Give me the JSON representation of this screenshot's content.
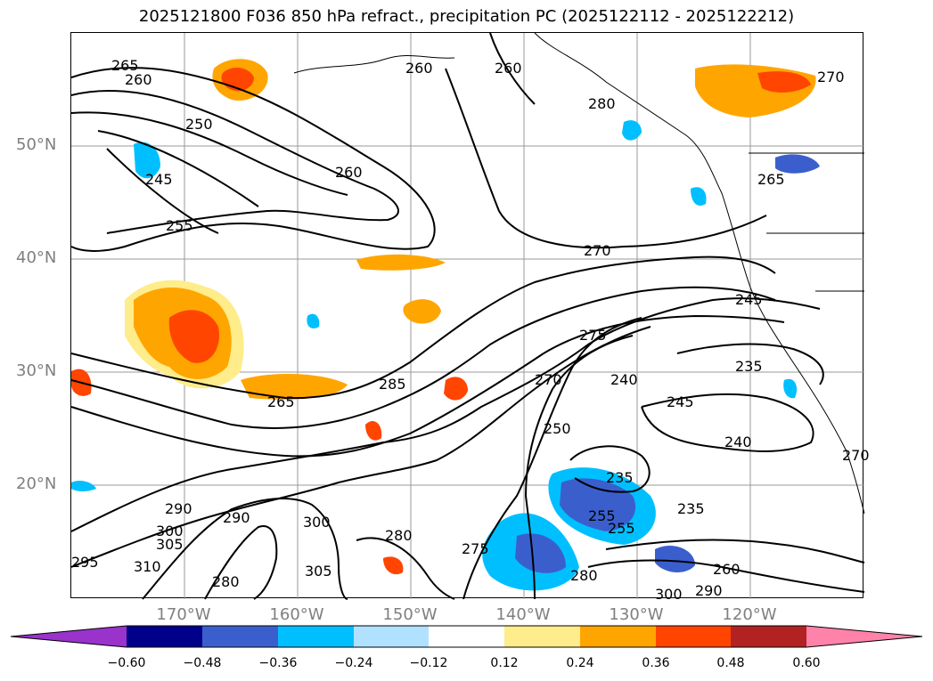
{
  "title": "2025121800 F036 850 hPa refract., precipitation PC (2025122112 - 2025122212)",
  "lat_labels": [
    "50°N",
    "40°N",
    "30°N",
    "20°N"
  ],
  "lon_labels": [
    "170°W",
    "160°W",
    "150°W",
    "140°W",
    "130°W",
    "120°W"
  ],
  "contour_labels": [
    "265",
    "260",
    "250",
    "260",
    "245",
    "255",
    "260",
    "270",
    "260",
    "280",
    "265",
    "270",
    "275",
    "285",
    "265",
    "270",
    "240",
    "245",
    "250",
    "240",
    "235",
    "235",
    "245",
    "255",
    "235",
    "255",
    "260",
    "290",
    "300",
    "305",
    "310",
    "280",
    "290",
    "300",
    "305",
    "295",
    "280",
    "275",
    "290",
    "300",
    "280",
    "270"
  ],
  "colorbar": {
    "ticks": [
      "−0.60",
      "−0.48",
      "−0.36",
      "−0.24",
      "−0.12",
      "0.12",
      "0.24",
      "0.36",
      "0.48",
      "0.60"
    ],
    "colors": [
      "#9933cc",
      "#00008b",
      "#3a5fcd",
      "#00bfff",
      "#b0e2ff",
      "#ffffff",
      "#ffec8b",
      "#ffa500",
      "#ff4500",
      "#b22222",
      "#ff82ab"
    ]
  }
}
